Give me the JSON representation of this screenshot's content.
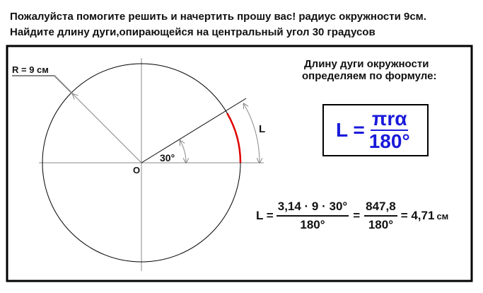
{
  "question": {
    "line1": "Пожалуйста помогите решить и начертить прошу вас! радиус окружности 9см.",
    "line2": "Найдите длину дуги,опирающейся на  центральный угол  30 градусов"
  },
  "diagram": {
    "radius_label": "R = 9 см",
    "center_label": "O",
    "angle_label": "30°",
    "arc_label": "L",
    "arc_color": "#e00000",
    "angle_degrees": 30
  },
  "explanation": {
    "line1": "Длину дуги окружности",
    "line2": "определяем по формуле:"
  },
  "formula": {
    "lhs": "L =",
    "numerator": "πrα",
    "denominator": "180°",
    "color": "#1a1adb"
  },
  "calculation": {
    "lhs": "L =",
    "frac1_num": "3,14 · 9 · 30°",
    "frac1_den": "180°",
    "eq": "=",
    "frac2_num": "847,8",
    "frac2_den": "180°",
    "result": "= 4,71",
    "unit": "см"
  }
}
